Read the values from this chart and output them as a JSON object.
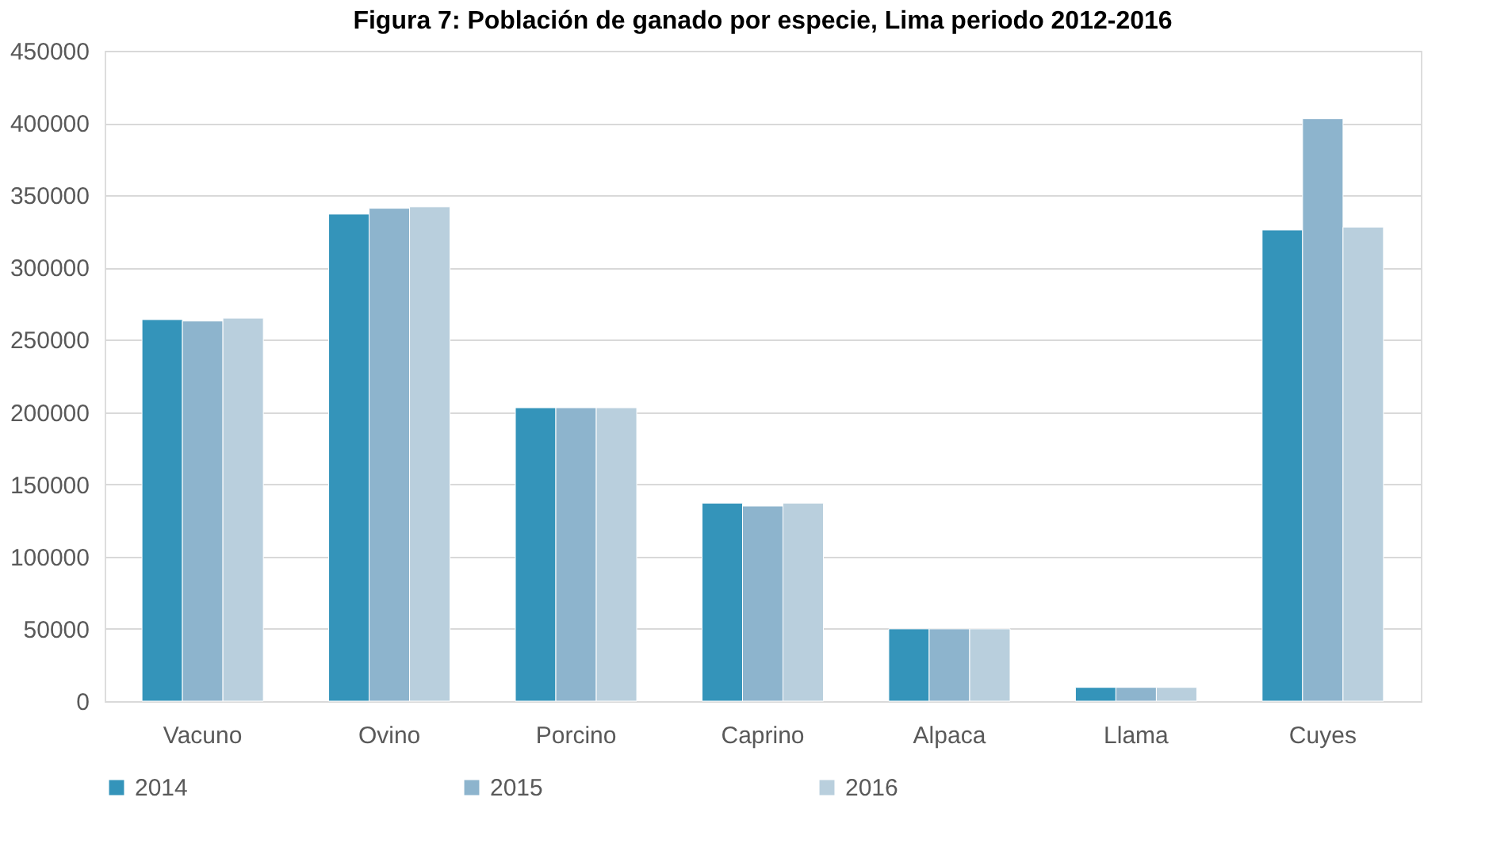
{
  "chart_data": {
    "type": "bar",
    "title": "Figura 7: Población de ganado por especie, Lima periodo 2012-2016",
    "categories": [
      "Vacuno",
      "Ovino",
      "Porcino",
      "Caprino",
      "Alpaca",
      "Llama",
      "Cuyes"
    ],
    "series": [
      {
        "name": "2014",
        "color": "#3494ba",
        "values": [
          264000,
          337000,
          203000,
          137000,
          50000,
          9500,
          326000
        ]
      },
      {
        "name": "2015",
        "color": "#8db4cd",
        "values": [
          263000,
          341000,
          203000,
          135000,
          50000,
          9500,
          403000
        ]
      },
      {
        "name": "2016",
        "color": "#b9cfdd",
        "values": [
          265000,
          342000,
          203000,
          137000,
          50000,
          9500,
          328000
        ]
      }
    ],
    "ylim": [
      0,
      450000
    ],
    "yticks": [
      0,
      50000,
      100000,
      150000,
      200000,
      250000,
      300000,
      350000,
      400000,
      450000
    ],
    "grid": "y",
    "legend": "bottom"
  }
}
